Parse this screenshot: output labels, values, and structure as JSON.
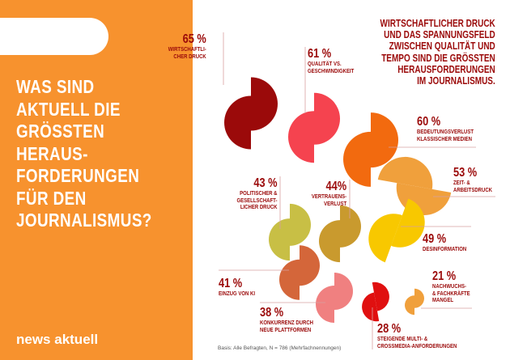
{
  "title": "WAS SIND\nAKTUELL DIE\nGRÖSSTEN\nHERAUS-\nFORDERUNGEN\nFÜR DEN\nJOURNALISMUS?",
  "logo": "news aktuell",
  "headline": "WIRTSCHAFTLICHER DRUCK\nUND DAS SPANNUNGSFELD\nZWISCHEN QUALITÄT UND\nTEMPO SIND DIE GRÖSSTEN\nHERAUSFORDERUNGEN\nIM JOURNALISMUS.",
  "basis": "Basis: Alle Befragten, N = 786 (Mehrfachnennungen)",
  "chart_data": {
    "type": "pie",
    "items": [
      {
        "label": "WIRTSCHAFTLI-\nCHER DRUCK",
        "value": 65,
        "display": "65 %",
        "color": "#9B0A0A"
      },
      {
        "label": "QUALITÄT VS.\nGESCHWINDIGKEIT",
        "value": 61,
        "display": "61 %",
        "color": "#F5434F"
      },
      {
        "label": "BEDEUTUNGSVERLUST\nKLASSISCHER MEDIEN",
        "value": 60,
        "display": "60 %",
        "color": "#F26A0F"
      },
      {
        "label": "ZEIT- &\nARBEITSDRUCK",
        "value": 53,
        "display": "53 %",
        "color": "#F0A03C"
      },
      {
        "label": "DESINFORMATION",
        "value": 49,
        "display": "49 %",
        "color": "#F8C800"
      },
      {
        "label": "VERTRAUENS-\nVERLUST",
        "value": 44,
        "display": "44%",
        "color": "#C99A2E"
      },
      {
        "label": "POLITISCHER &\nGESELLSCHAFT-\nLICHER DRUCK",
        "value": 43,
        "display": "43 %",
        "color": "#C8BF45"
      },
      {
        "label": "EINZUG VON KI",
        "value": 41,
        "display": "41 %",
        "color": "#D4663A"
      },
      {
        "label": "KONKURRENZ DURCH\nNEUE PLATTFORMEN",
        "value": 38,
        "display": "38 %",
        "color": "#F08080"
      },
      {
        "label": "STEIGENDE MULTI- &\nCROSSMEDIA-ANFORDERUNGEN",
        "value": 28,
        "display": "28 %",
        "color": "#E01010"
      },
      {
        "label": "NACHWUCHS-\n& FACHKRÄFTE\nMANGEL",
        "value": 21,
        "display": "21 %",
        "color": "#F0A03C"
      }
    ]
  }
}
